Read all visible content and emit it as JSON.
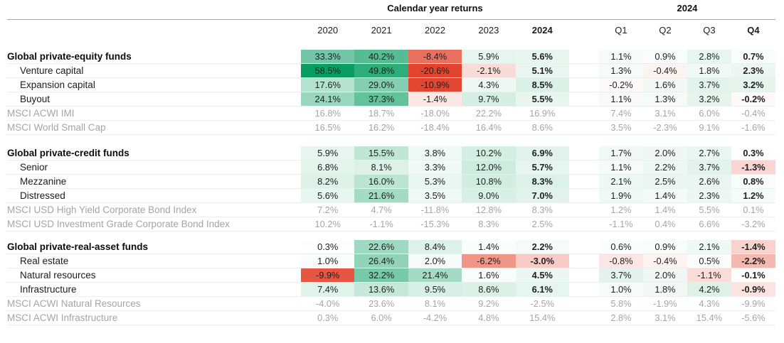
{
  "chart_data": {
    "type": "heatmap",
    "unit": "%",
    "column_groups": [
      {
        "label": "Calendar year returns",
        "columns": [
          "2020",
          "2021",
          "2022",
          "2023",
          "2024"
        ]
      },
      {
        "label": "2024",
        "columns": [
          "Q1",
          "Q2",
          "Q3",
          "Q4"
        ]
      }
    ],
    "bold_columns": {
      "years": "2024",
      "quarters": "Q4"
    },
    "colors": {
      "positive_max": "#0a9d63",
      "negative_max": "#e2442e",
      "cell_base": "#ffffff",
      "text": "#202020",
      "benchmark_text": "#a5a5a5",
      "header_rule": "#a9a9a9",
      "row_divider": "#ededed"
    },
    "color_scale": {
      "year_green_span": 58.5,
      "year_red_span": 11,
      "quarter_green_span": 30,
      "quarter_red_span": 6
    },
    "sections": [
      {
        "rows": [
          {
            "label": "Global private-equity funds",
            "kind": "header",
            "years": [
              33.3,
              40.2,
              -8.4,
              5.9,
              5.6
            ],
            "quarters": [
              1.1,
              0.9,
              2.8,
              0.7
            ]
          },
          {
            "label": "Venture capital",
            "kind": "sub",
            "years": [
              58.5,
              49.8,
              -20.6,
              -2.1,
              5.1
            ],
            "quarters": [
              1.3,
              -0.4,
              1.8,
              2.3
            ]
          },
          {
            "label": "Expansion capital",
            "kind": "sub",
            "years": [
              17.6,
              29.0,
              -10.9,
              4.3,
              8.5
            ],
            "quarters": [
              -0.2,
              1.6,
              3.7,
              3.2
            ]
          },
          {
            "label": "Buyout",
            "kind": "sub",
            "years": [
              24.1,
              37.3,
              -1.4,
              9.7,
              5.5
            ],
            "quarters": [
              1.1,
              1.3,
              3.2,
              -0.2
            ]
          },
          {
            "label": "MSCI ACWI IMI",
            "kind": "benchmark",
            "years": [
              16.8,
              18.7,
              -18.0,
              22.2,
              16.9
            ],
            "quarters": [
              7.4,
              3.1,
              6.0,
              -0.4
            ]
          },
          {
            "label": "MSCI World Small Cap",
            "kind": "benchmark",
            "years": [
              16.5,
              16.2,
              -18.4,
              16.4,
              8.6
            ],
            "quarters": [
              3.5,
              -2.3,
              9.1,
              -1.6
            ]
          }
        ]
      },
      {
        "rows": [
          {
            "label": "Global private-credit funds",
            "kind": "header",
            "years": [
              5.9,
              15.5,
              3.8,
              10.2,
              6.9
            ],
            "quarters": [
              1.7,
              2.0,
              2.7,
              0.3
            ]
          },
          {
            "label": "Senior",
            "kind": "sub",
            "years": [
              6.8,
              8.1,
              3.3,
              12.0,
              5.7
            ],
            "quarters": [
              1.1,
              2.2,
              3.7,
              -1.3
            ]
          },
          {
            "label": "Mezzanine",
            "kind": "sub",
            "years": [
              8.2,
              16.0,
              5.3,
              10.8,
              8.3
            ],
            "quarters": [
              2.1,
              2.5,
              2.6,
              0.8
            ]
          },
          {
            "label": "Distressed",
            "kind": "sub",
            "years": [
              5.6,
              21.6,
              3.5,
              9.0,
              7.0
            ],
            "quarters": [
              1.9,
              1.4,
              2.3,
              1.2
            ]
          },
          {
            "label": "MSCI USD High Yield Corporate Bond Index",
            "kind": "benchmark",
            "years": [
              7.2,
              4.7,
              -11.8,
              12.8,
              8.3
            ],
            "quarters": [
              1.2,
              1.4,
              5.5,
              0.1
            ]
          },
          {
            "label": "MSCI USD Investment Grade Corporate Bond Index",
            "kind": "benchmark",
            "years": [
              10.2,
              -1.1,
              -15.3,
              8.3,
              2.5
            ],
            "quarters": [
              -1.1,
              0.4,
              6.6,
              -3.2
            ]
          }
        ]
      },
      {
        "rows": [
          {
            "label": "Global private-real-asset funds",
            "kind": "header",
            "years": [
              0.3,
              22.6,
              8.4,
              1.4,
              2.2
            ],
            "quarters": [
              0.6,
              0.9,
              2.1,
              -1.4
            ]
          },
          {
            "label": "Real estate",
            "kind": "sub",
            "years": [
              1.0,
              26.4,
              2.0,
              -6.2,
              -3.0
            ],
            "quarters": [
              -0.8,
              -0.4,
              0.5,
              -2.2
            ]
          },
          {
            "label": "Natural resources",
            "kind": "sub",
            "years": [
              -9.9,
              32.2,
              21.4,
              1.6,
              4.5
            ],
            "quarters": [
              3.7,
              2.0,
              -1.1,
              -0.1
            ]
          },
          {
            "label": "Infrastructure",
            "kind": "sub",
            "years": [
              7.4,
              13.6,
              9.5,
              8.6,
              6.1
            ],
            "quarters": [
              1.0,
              1.8,
              4.2,
              -0.9
            ]
          },
          {
            "label": "MSCI ACWI Natural Resources",
            "kind": "benchmark",
            "years": [
              -4.0,
              23.6,
              8.1,
              9.2,
              -2.5
            ],
            "quarters": [
              5.8,
              -1.9,
              4.3,
              -9.9
            ]
          },
          {
            "label": "MSCI ACWI Infrastructure",
            "kind": "benchmark",
            "years": [
              0.3,
              6.0,
              -4.2,
              4.8,
              15.4
            ],
            "quarters": [
              2.8,
              3.1,
              15.4,
              -5.6
            ]
          }
        ]
      }
    ]
  }
}
